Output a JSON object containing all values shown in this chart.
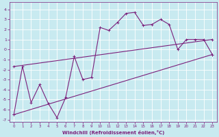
{
  "xlabel": "Windchill (Refroidissement éolien,°C)",
  "background_color": "#c8eaf0",
  "grid_color": "#b0d8e0",
  "line_color": "#7b1f7b",
  "xlim": [
    -0.5,
    23.5
  ],
  "ylim": [
    -7.2,
    4.7
  ],
  "xticks": [
    0,
    1,
    2,
    3,
    4,
    5,
    6,
    7,
    8,
    9,
    10,
    11,
    12,
    13,
    14,
    15,
    16,
    17,
    18,
    19,
    20,
    21,
    22,
    23
  ],
  "yticks": [
    -7,
    -6,
    -5,
    -4,
    -3,
    -2,
    -1,
    0,
    1,
    2,
    3,
    4
  ],
  "hours": [
    0,
    1,
    2,
    3,
    4,
    5,
    6,
    7,
    8,
    9,
    10,
    11,
    12,
    13,
    14,
    15,
    16,
    17,
    18,
    19,
    20,
    21,
    22,
    23
  ],
  "windchill": [
    -6.5,
    -1.7,
    -5.3,
    -3.5,
    -5.4,
    -6.8,
    -4.8,
    -0.7,
    -3.0,
    -2.8,
    2.2,
    1.9,
    2.7,
    3.6,
    3.7,
    2.4,
    2.5,
    3.0,
    2.5,
    0.0,
    1.0,
    1.0,
    1.0,
    -0.5
  ],
  "line2_x": [
    0,
    23
  ],
  "line2_y": [
    -6.5,
    -0.5
  ],
  "line3_x": [
    0,
    23
  ],
  "line3_y": [
    -1.7,
    1.0
  ]
}
